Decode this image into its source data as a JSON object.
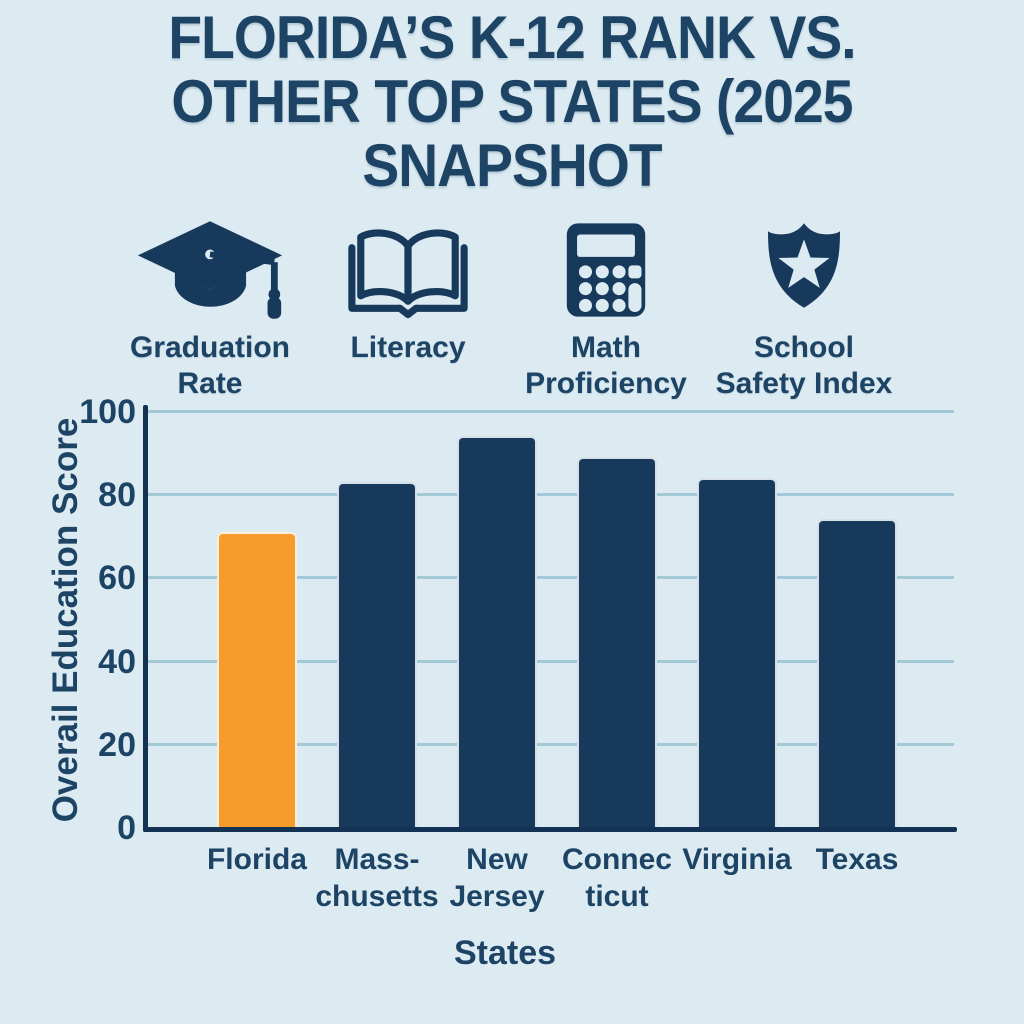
{
  "title": {
    "lines": [
      "FLORIDA’S K-12 RANK VS.",
      "OTHER TOP STATES (2025",
      "SNAPSHOT"
    ]
  },
  "metrics": {
    "items": [
      {
        "icon": "graduation-cap-icon",
        "line1": "Graduation",
        "line2": "Rate"
      },
      {
        "icon": "open-book-icon",
        "line1": "Literacy",
        "line2": ""
      },
      {
        "icon": "calculator-icon",
        "line1": "Math",
        "line2": "Proficiency"
      },
      {
        "icon": "shield-star-icon",
        "line1": "School",
        "line2": "Safety Index"
      }
    ]
  },
  "chart_data": {
    "type": "bar",
    "title": "",
    "categories": [
      "Florida",
      "Massachusetts",
      "New Jersey",
      "Connecticut",
      "Virginia",
      "Texas"
    ],
    "tick_lines": [
      [
        "Florida"
      ],
      [
        "Mass-",
        "chusetts"
      ],
      [
        "New",
        "Jersey"
      ],
      [
        "Connec",
        "ticut"
      ],
      [
        "Virginia"
      ],
      [
        "Texas"
      ]
    ],
    "values": [
      71,
      83,
      94,
      89,
      84,
      74
    ],
    "xlabel": "States",
    "ylabel": "Overail Education Score",
    "ylim": [
      0,
      100
    ],
    "yticks": [
      0,
      20,
      40,
      60,
      80,
      100
    ],
    "grid": true,
    "legend": false,
    "highlight_category": "Florida",
    "bar_colors": [
      "#F79B2C",
      "#17395C",
      "#17395C",
      "#17395C",
      "#17395C",
      "#17395C"
    ]
  },
  "colors": {
    "background": "#DCEBF2",
    "text_navy": "#1D4365",
    "bar_navy": "#17395C",
    "florida_orange": "#F79B2C",
    "gridline": "#A3C9D6",
    "axis": "#143253"
  }
}
